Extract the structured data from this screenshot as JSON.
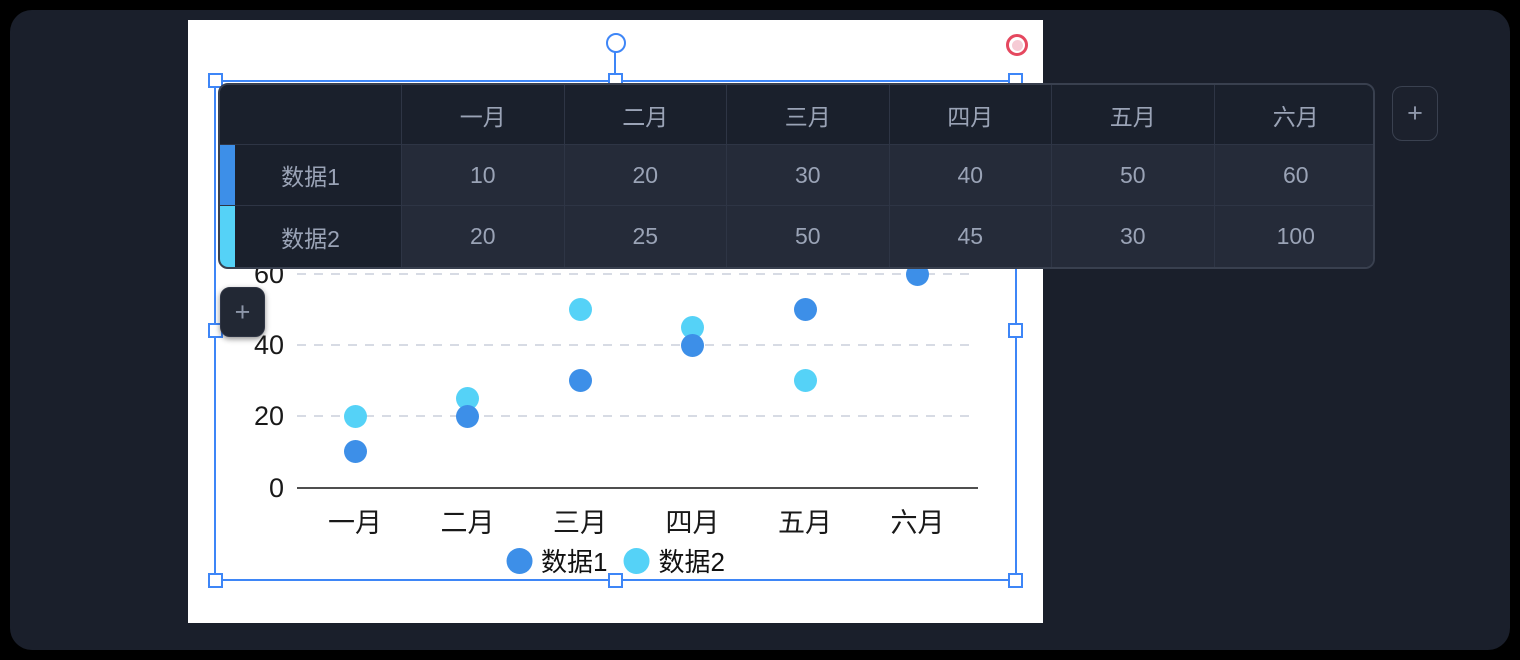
{
  "colors": {
    "accent": "#3e86f7",
    "remove_ring": "#e5485f",
    "remove_fill": "#f6cbd5",
    "grid_line": "#d7dbe4",
    "axis_line": "#4f4f4f"
  },
  "table": {
    "corner_label": "",
    "columns": [
      "一月",
      "二月",
      "三月",
      "四月",
      "五月",
      "六月"
    ],
    "rows": [
      {
        "label": "数据1",
        "color": "#3d8fe8",
        "values": [
          "10",
          "20",
          "30",
          "40",
          "50",
          "60"
        ]
      },
      {
        "label": "数据2",
        "color": "#55d2f7",
        "values": [
          "20",
          "25",
          "50",
          "45",
          "30",
          "100"
        ]
      }
    ],
    "add_column_button": "+",
    "add_row_button": "+"
  },
  "chart_data": {
    "type": "scatter",
    "title": "",
    "xlabel": "",
    "ylabel": "",
    "categories": [
      "一月",
      "二月",
      "三月",
      "四月",
      "五月",
      "六月"
    ],
    "series": [
      {
        "name": "数据1",
        "color": "#3d8fe8",
        "values": [
          10,
          20,
          30,
          40,
          50,
          60
        ]
      },
      {
        "name": "数据2",
        "color": "#55d2f7",
        "values": [
          20,
          25,
          50,
          45,
          30,
          100
        ]
      }
    ],
    "yticks": [
      0,
      20,
      40,
      60
    ],
    "ylim": [
      0,
      60
    ],
    "grid": true,
    "legend_position": "bottom"
  }
}
